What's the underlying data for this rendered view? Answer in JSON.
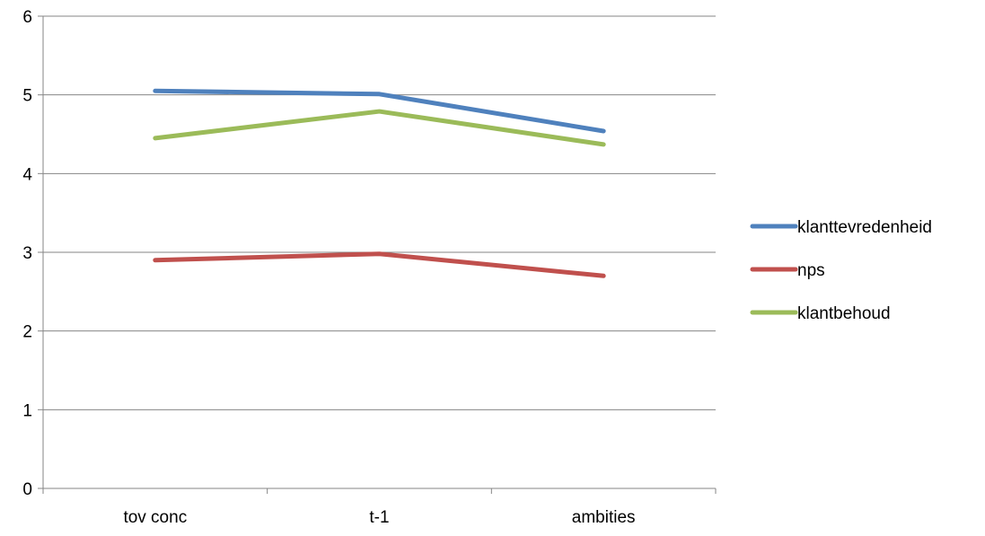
{
  "chart_data": {
    "type": "line",
    "title": "",
    "xlabel": "",
    "ylabel": "",
    "categories": [
      "tov conc",
      "t-1",
      "ambities"
    ],
    "ylim": [
      0,
      6
    ],
    "yticks": [
      0,
      1,
      2,
      3,
      4,
      5,
      6
    ],
    "grid": true,
    "legend_position": "right",
    "series": [
      {
        "name": "klanttevredenheid",
        "color": "#4F81BD",
        "values": [
          5.05,
          5.01,
          4.54
        ]
      },
      {
        "name": "nps",
        "color": "#C0504D",
        "values": [
          2.9,
          2.98,
          2.7
        ]
      },
      {
        "name": "klantbehoud",
        "color": "#9BBB59",
        "values": [
          4.45,
          4.79,
          4.37
        ]
      }
    ]
  }
}
